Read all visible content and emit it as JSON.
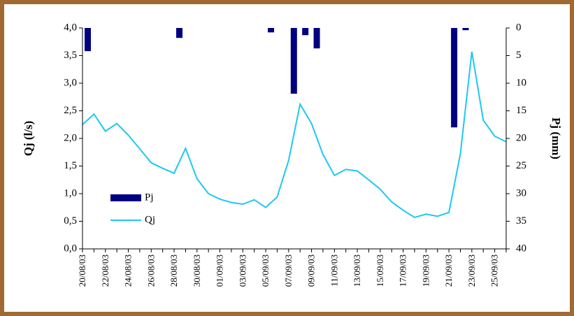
{
  "chart_data": {
    "type": "bar-line",
    "y_label": "Qj (l/s)",
    "y2_label": "Pj (mm)",
    "categories": [
      "20/08/03",
      null,
      "22/08/03",
      null,
      "24/08/03",
      null,
      "26/08/03",
      null,
      "28/08/03",
      null,
      "30/08/03",
      null,
      "01/09/03",
      null,
      "03/09/03",
      null,
      "05/09/03",
      null,
      "07/09/03",
      null,
      "09/09/03",
      null,
      "11/09/03",
      null,
      "13/09/03",
      null,
      "15/09/03",
      null,
      "17/09/03",
      null,
      "19/09/03",
      null,
      "21/09/03",
      null,
      "23/09/03",
      null,
      "25/09/03",
      null
    ],
    "series": [
      {
        "name": "Pj",
        "type": "bar",
        "axis": "y2",
        "color": "#000080",
        "values": [
          4.2,
          0,
          0,
          0,
          0,
          0,
          0,
          0,
          1.8,
          0,
          0,
          0,
          0,
          0,
          0,
          0,
          0.8,
          0,
          11.9,
          1.3,
          3.7,
          0,
          0,
          0,
          0,
          0,
          0,
          0,
          0,
          0,
          0,
          0,
          18.0,
          0.4,
          0,
          0,
          0,
          0
        ]
      },
      {
        "name": "Qj",
        "type": "line",
        "axis": "y",
        "color": "#1ec8f0",
        "values": [
          2.25,
          2.44,
          2.13,
          2.27,
          2.06,
          1.81,
          1.56,
          1.46,
          1.37,
          1.82,
          1.27,
          1.0,
          0.9,
          0.84,
          0.81,
          0.89,
          0.75,
          0.94,
          1.6,
          2.62,
          2.27,
          1.71,
          1.33,
          1.44,
          1.41,
          1.25,
          1.08,
          0.85,
          0.7,
          0.57,
          0.63,
          0.59,
          0.66,
          1.72,
          3.57,
          2.33,
          2.04,
          1.94
        ]
      }
    ],
    "ylim": [
      0,
      4
    ],
    "yticks": [
      {
        "value": 0,
        "label": "0,0"
      },
      {
        "value": 0.5,
        "label": "0,5"
      },
      {
        "value": 1,
        "label": "1,0"
      },
      {
        "value": 1.5,
        "label": "1,5"
      },
      {
        "value": 2,
        "label": "2,0"
      },
      {
        "value": 2.5,
        "label": "2,5"
      },
      {
        "value": 3,
        "label": "3,0"
      },
      {
        "value": 3.5,
        "label": "3,5"
      },
      {
        "value": 4,
        "label": "4,0"
      }
    ],
    "y2lim": [
      40,
      0
    ],
    "y2_inverted": true,
    "y2ticks": [
      0,
      5,
      10,
      15,
      20,
      25,
      30,
      35,
      40
    ],
    "legend": "lower-left"
  }
}
